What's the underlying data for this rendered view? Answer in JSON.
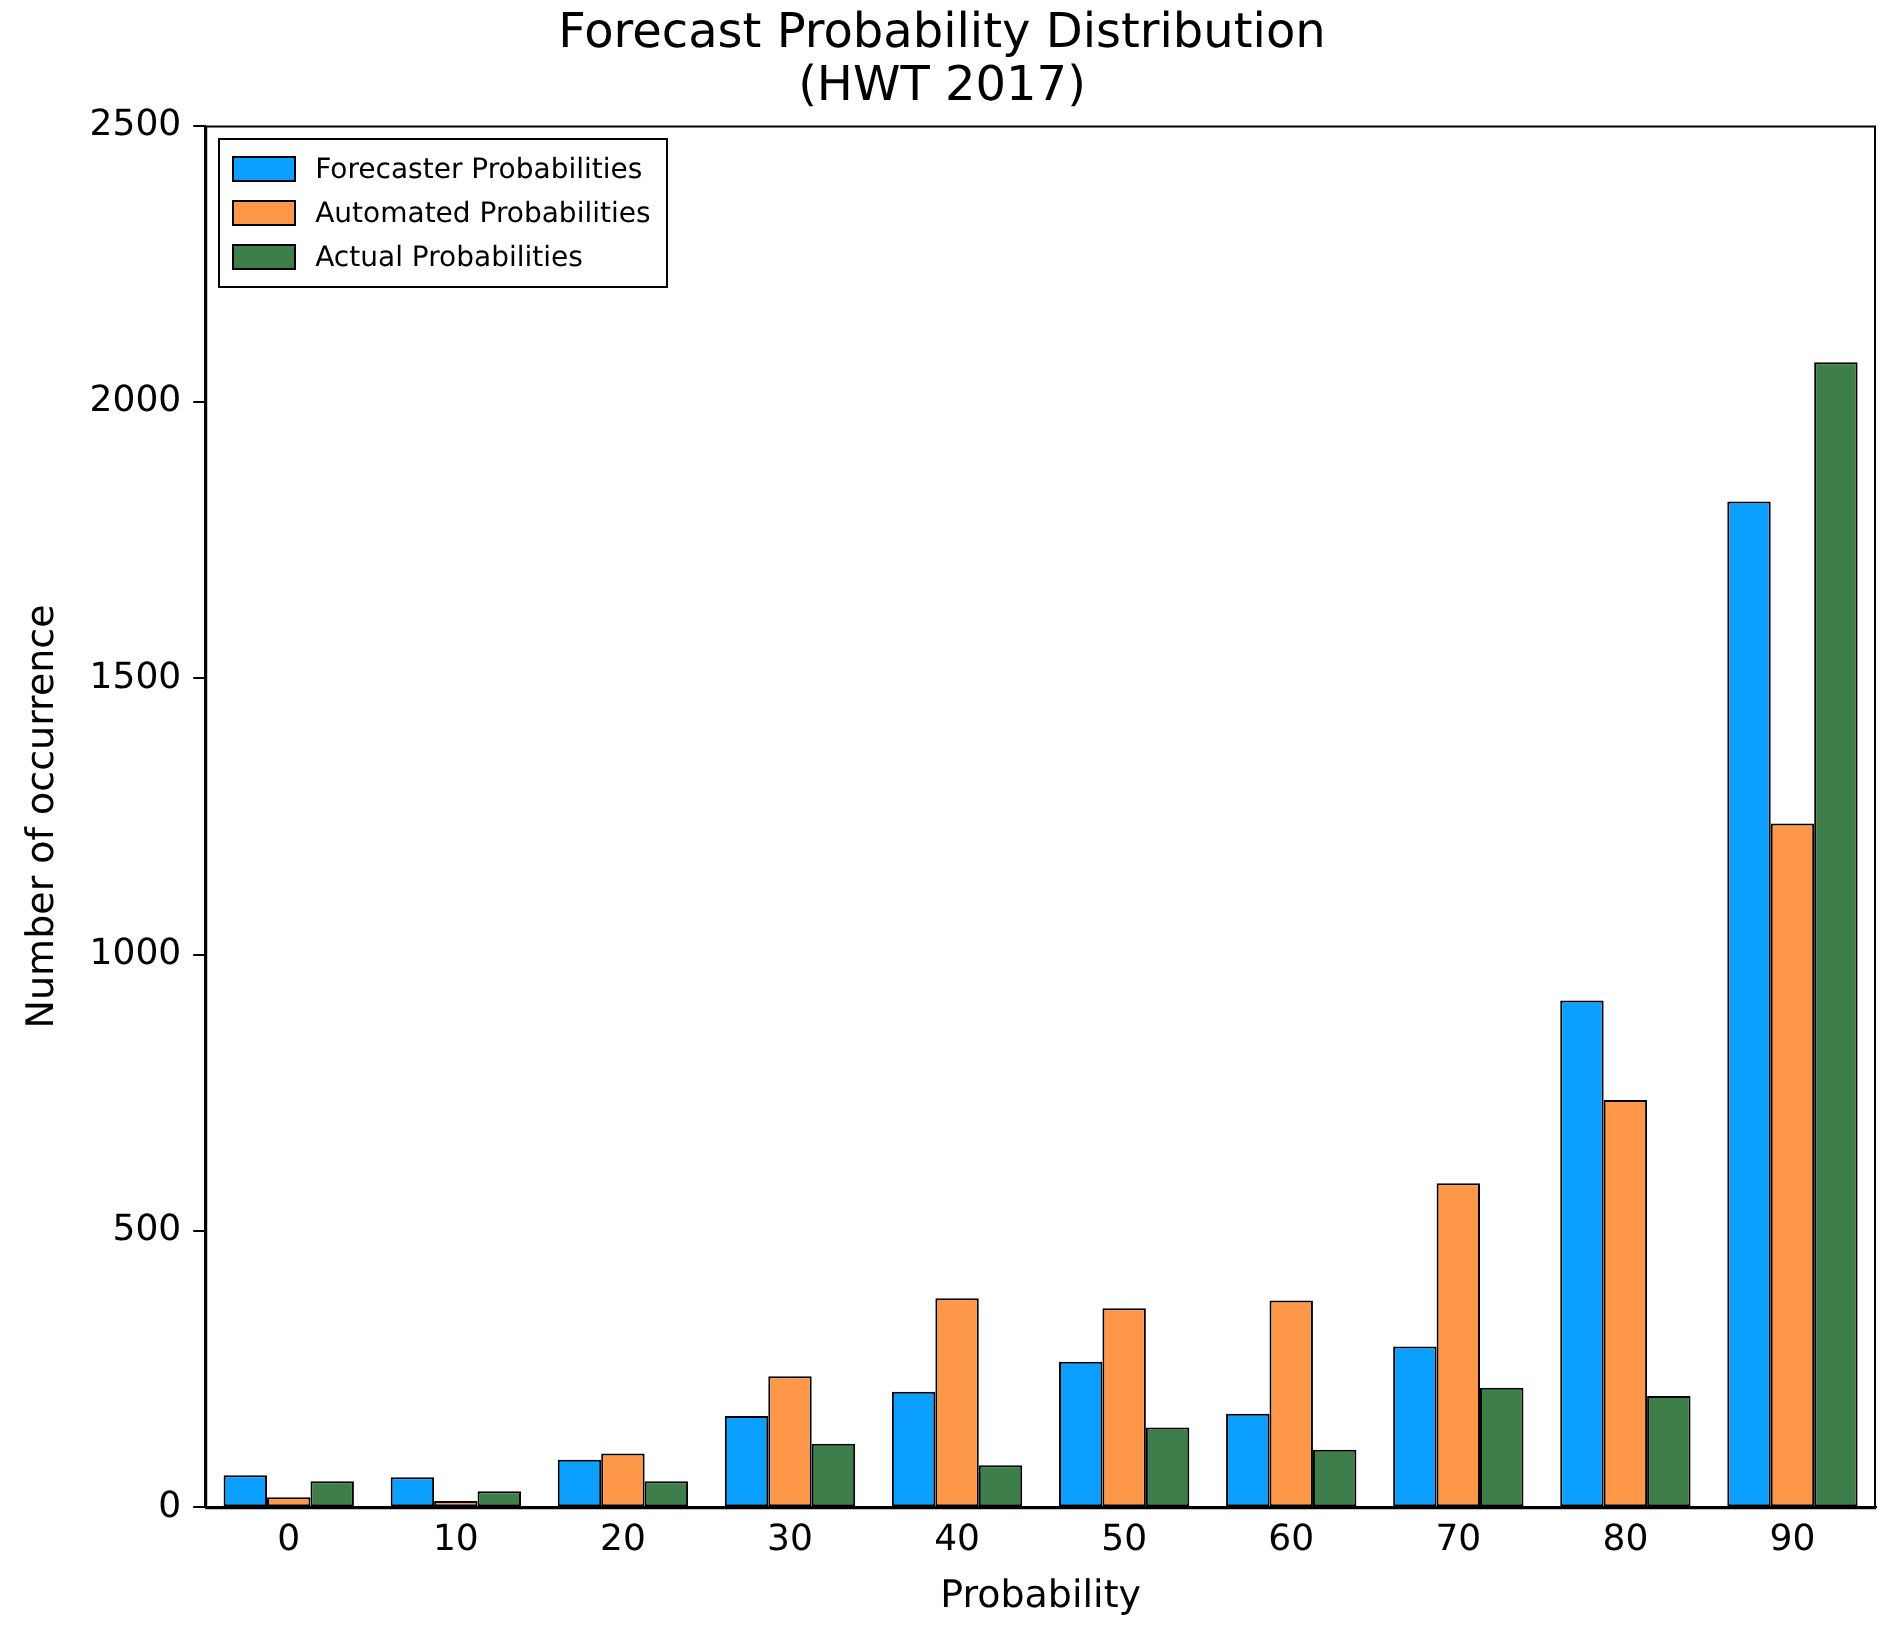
{
  "chart_data": {
    "type": "bar",
    "title": "Forecast Probability Distribution\n(HWT 2017)",
    "xlabel": "Probability",
    "ylabel": "Number of occurrence",
    "categories": [
      "0",
      "10",
      "20",
      "30",
      "40",
      "50",
      "60",
      "70",
      "80",
      "90"
    ],
    "series": [
      {
        "name": "Forecaster Probabilities",
        "color": "#0ba0ff",
        "values": [
          58,
          54,
          86,
          165,
          209,
          263,
          169,
          291,
          917,
          1820
        ]
      },
      {
        "name": "Automated Probabilities",
        "color": "#ff9748",
        "values": [
          18,
          11,
          97,
          237,
          378,
          360,
          374,
          586,
          737,
          1237
        ]
      },
      {
        "name": "Actual Probabilities",
        "color": "#3e7e4a",
        "values": [
          47,
          29,
          47,
          115,
          76,
          144,
          104,
          216,
          201,
          2072
        ]
      }
    ],
    "ylim": [
      0,
      2500
    ],
    "yticks": [
      0,
      500,
      1000,
      1500,
      2000,
      2500
    ],
    "grid": false,
    "legend": "top left"
  }
}
